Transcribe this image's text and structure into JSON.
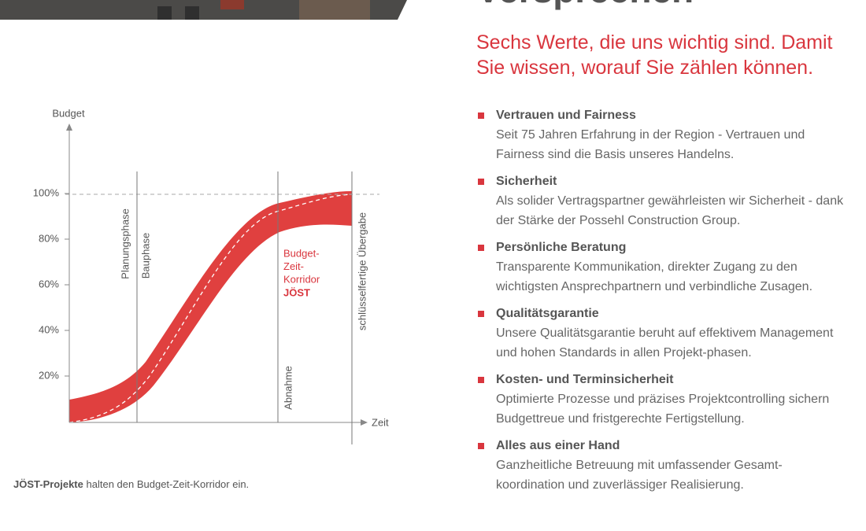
{
  "heading": "Versprechen",
  "subtitle": "Sechs Werte, die uns wichtig sind. Damit Sie wissen, worauf Sie zählen können.",
  "chart": {
    "y_axis_label": "Budget",
    "x_axis_label": "Zeit",
    "ylim": [
      0,
      130
    ],
    "yticks": [
      {
        "value": 20,
        "label": "20%"
      },
      {
        "value": 40,
        "label": "40%"
      },
      {
        "value": 60,
        "label": "60%"
      },
      {
        "value": 80,
        "label": "80%"
      },
      {
        "value": 100,
        "label": "100%"
      }
    ],
    "phases": [
      "Planungsphase",
      "Bauphase",
      "Abnahme",
      "schlüsselfertige Übergabe"
    ],
    "corridor_label": [
      "Budget-",
      "Zeit-",
      "Korridor"
    ],
    "corridor_brand": "JÖST"
  },
  "caption": {
    "bold": "JÖST-Projekte",
    "text": "halten den Budget-Zeit-Korridor ein."
  },
  "values": [
    {
      "title": "Vertrauen und Fairness",
      "text": "Seit 75 Jahren Erfahrung in der Region - Vertrauen und Fairness sind die Basis unseres Handelns."
    },
    {
      "title": "Sicherheit",
      "text": "Als solider Vertragspartner gewährleisten wir Sicherheit - dank der Stärke der Possehl Construction Group."
    },
    {
      "title": "Persönliche Beratung",
      "text": "Transparente Kommunikation, direkter Zugang zu den wichtigsten Ansprechpartnern und verbindliche Zusagen."
    },
    {
      "title": "Qualitätsgarantie",
      "text": "Unsere Qualitätsgarantie beruht auf effektivem Management und hohen Standards in allen Projekt-phasen."
    },
    {
      "title": "Kosten- und Terminsicherheit",
      "text": "Optimierte Prozesse und präzises Projektcontrolling sichern Budgettreue und fristgerechte Fertigstellung."
    },
    {
      "title": "Alles aus einer Hand",
      "text": "Ganzheitliche Betreuung mit umfassender Gesamt-koordination und zuverlässiger Realisierung."
    }
  ]
}
